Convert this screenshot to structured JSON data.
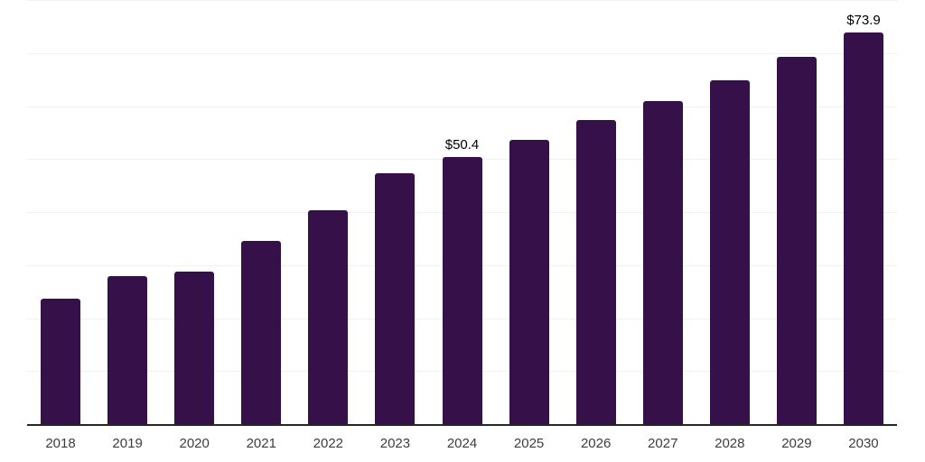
{
  "chart_data": {
    "type": "bar",
    "title": "",
    "xlabel": "",
    "ylabel": "",
    "categories": [
      "2018",
      "2019",
      "2020",
      "2021",
      "2022",
      "2023",
      "2024",
      "2025",
      "2026",
      "2027",
      "2028",
      "2029",
      "2030"
    ],
    "values": [
      23.7,
      28.0,
      28.7,
      34.6,
      40.4,
      47.3,
      50.4,
      53.7,
      57.3,
      60.9,
      64.8,
      69.3,
      73.9
    ],
    "bar_labels": [
      "",
      "",
      "",
      "",
      "",
      "",
      "$50.4",
      "",
      "",
      "",
      "",
      "",
      "$73.9"
    ],
    "ylim": [
      0,
      80
    ],
    "gridline_step": 10,
    "grid": "horizontal",
    "legend_position": "none",
    "y_axis_tick_labels_visible": false,
    "colors": {
      "bar": "#361149",
      "gridline": "#f0f0f0",
      "axis_line": "#262626",
      "tick_label": "#3d3d3d",
      "bar_label": "#000000",
      "background": "#ffffff"
    }
  }
}
